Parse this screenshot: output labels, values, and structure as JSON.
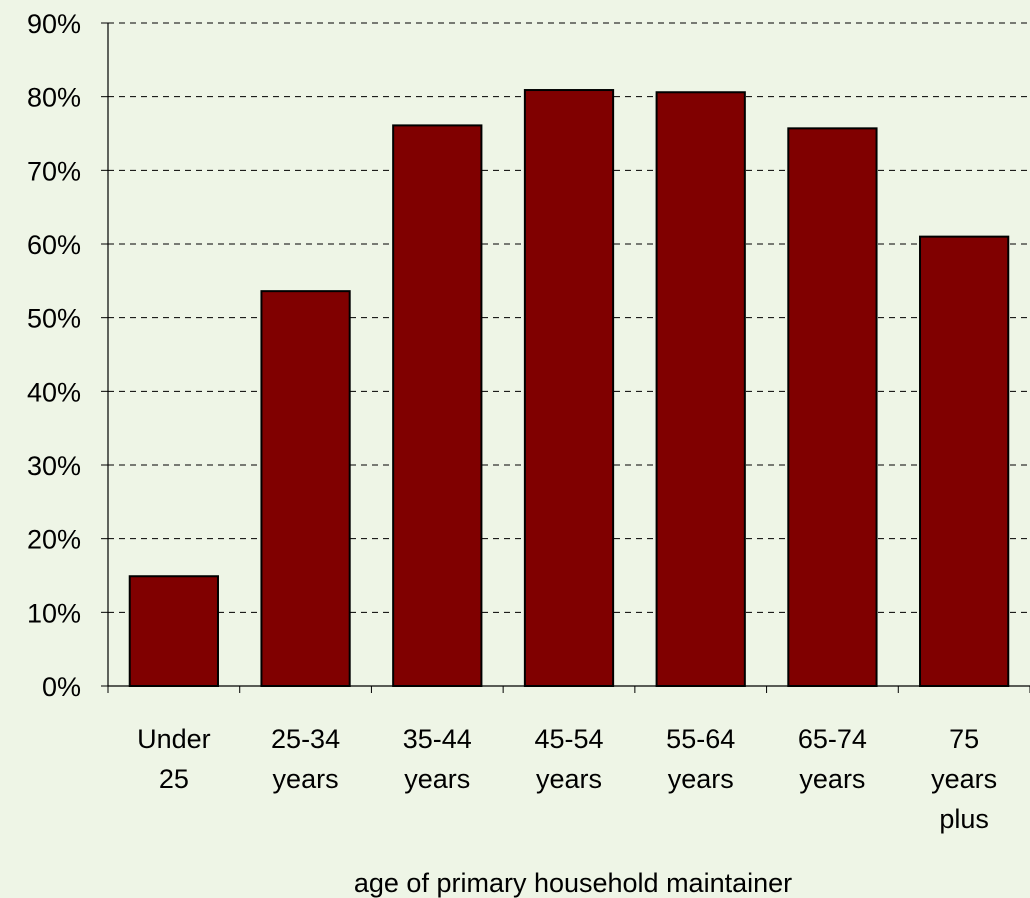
{
  "chart_data": {
    "type": "bar",
    "title": "",
    "xlabel": "age of primary household maintainer",
    "ylabel": "",
    "categories": [
      "Under 25",
      "25-34 years",
      "35-44 years",
      "45-54 years",
      "55-64 years",
      "65-74 years",
      "75 years plus"
    ],
    "category_lines": [
      [
        "Under",
        "25"
      ],
      [
        "25-34",
        "years"
      ],
      [
        "35-44",
        "years"
      ],
      [
        "45-54",
        "years"
      ],
      [
        "55-64",
        "years"
      ],
      [
        "65-74",
        "years"
      ],
      [
        "75",
        "years",
        "plus"
      ]
    ],
    "values": [
      14.9,
      53.6,
      76.1,
      80.9,
      80.6,
      75.7,
      61.0
    ],
    "ylim": [
      0,
      90
    ],
    "yticks": [
      0,
      10,
      20,
      30,
      40,
      50,
      60,
      70,
      80,
      90
    ],
    "ytick_labels": [
      "0%",
      "10%",
      "20%",
      "30%",
      "40%",
      "50%",
      "60%",
      "70%",
      "80%",
      "90%"
    ],
    "grid": true,
    "legend": "none",
    "colors": {
      "bar": "#800000",
      "bar_stroke": "#000000",
      "background": "#eef5e6",
      "grid": "#000000"
    }
  }
}
